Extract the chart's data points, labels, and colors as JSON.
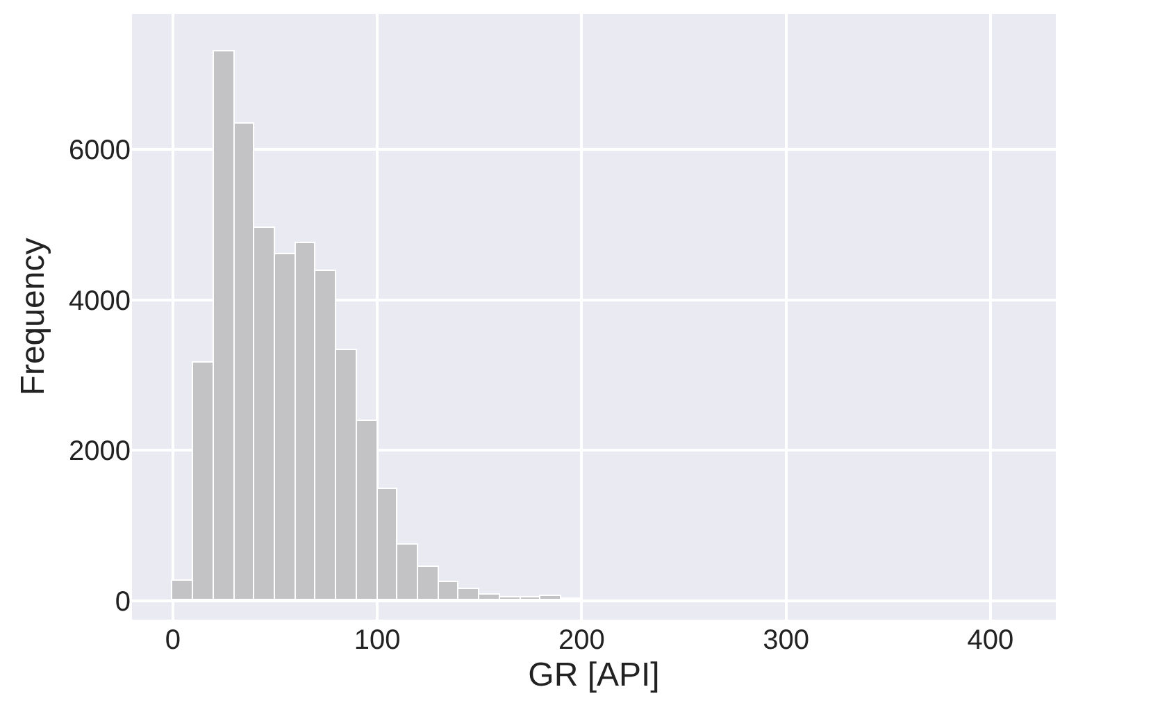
{
  "chart_data": {
    "type": "histogram",
    "xlabel": "GR [API]",
    "ylabel": "Frequency",
    "bins": [
      0,
      10,
      20,
      30,
      40,
      50,
      60,
      70,
      80,
      90,
      100,
      110,
      120,
      130,
      140,
      150,
      160,
      170,
      180,
      190,
      200
    ],
    "values": [
      260,
      3170,
      7300,
      6350,
      4950,
      4600,
      4750,
      4380,
      3330,
      2390,
      1480,
      750,
      460,
      250,
      160,
      80,
      50,
      50,
      60,
      20
    ],
    "color": "#c3c3c5",
    "xlim": [
      -20,
      432
    ],
    "xticks": [
      0,
      100,
      200,
      300,
      400
    ],
    "ylim": [
      -250,
      7800
    ],
    "yticks": [
      0,
      2000,
      4000,
      6000
    ],
    "grid": true
  }
}
